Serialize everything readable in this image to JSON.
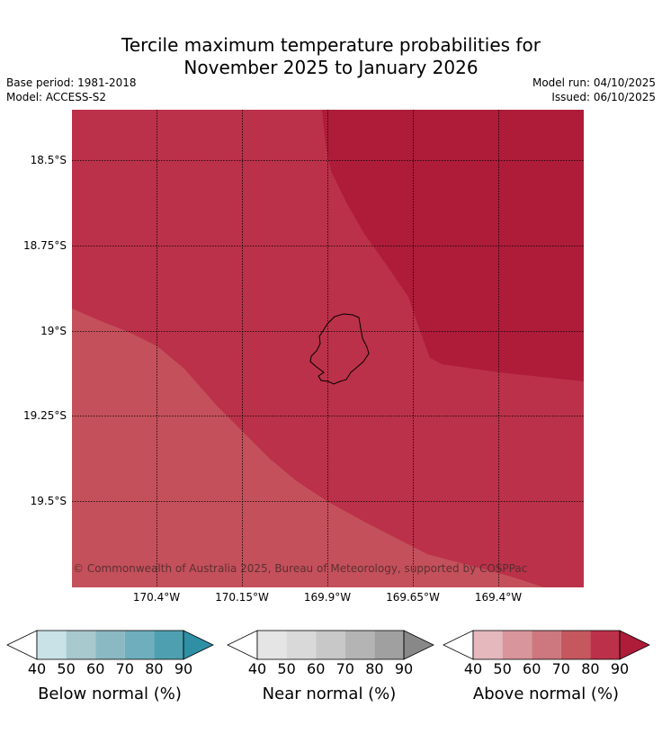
{
  "header": {
    "title_line1": "Tercile maximum temperature probabilities for",
    "title_line2": "November 2025 to January 2026",
    "base_period": "Base period: 1981-2018",
    "model": "Model: ACCESS-S2",
    "model_run": "Model run: 04/10/2025",
    "issued": "Issued: 06/10/2025"
  },
  "map": {
    "lat_labels": [
      "18.5°S",
      "18.75°S",
      "19°S",
      "19.25°S",
      "19.5°S"
    ],
    "lon_labels": [
      "170.4°W",
      "170.15°W",
      "169.9°W",
      "169.65°W",
      "169.4°W"
    ],
    "copyright": "© Commonwealth of Australia 2025, Bureau of Meteorology, supported by COSPPac",
    "fill_colors": {
      "above_70": "#c4505b",
      "above_80": "#bb3149",
      "above_90": "#ae1c3a"
    }
  },
  "legends": [
    {
      "label": "Below normal (%)",
      "ticks": [
        "40",
        "50",
        "60",
        "70",
        "80",
        "90"
      ],
      "colors": [
        "#ffffff",
        "#c8e2e8",
        "#a8c9ce",
        "#8ab8c3",
        "#6eaebd",
        "#4ea0b1",
        "#2f8fa5"
      ]
    },
    {
      "label": "Near normal (%)",
      "ticks": [
        "40",
        "50",
        "60",
        "70",
        "80",
        "90"
      ],
      "colors": [
        "#ffffff",
        "#e5e5e5",
        "#d9d9d9",
        "#c8c8c8",
        "#b4b4b4",
        "#a0a0a0",
        "#888888"
      ]
    },
    {
      "label": "Above normal (%)",
      "ticks": [
        "40",
        "50",
        "60",
        "70",
        "80",
        "90"
      ],
      "colors": [
        "#ffffff",
        "#e4b8bd",
        "#d8959c",
        "#cd777f",
        "#c5575f",
        "#bb3149",
        "#ae1c3a"
      ]
    }
  ]
}
